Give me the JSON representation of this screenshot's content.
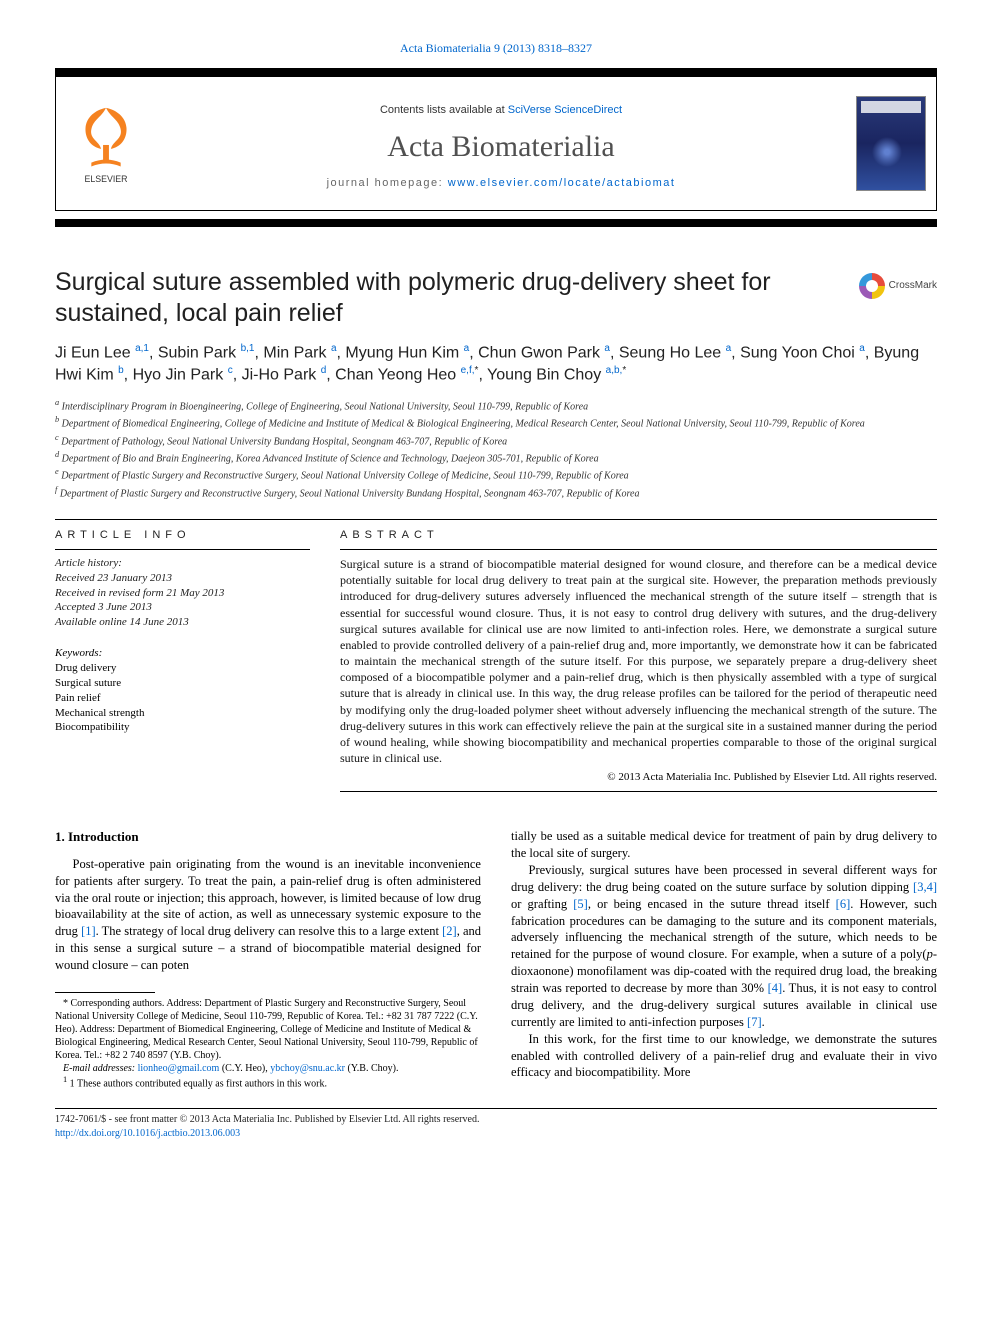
{
  "biblio": {
    "text": "Acta Biomaterialia 9 (2013) 8318–8327",
    "journal_link": "Acta Biomaterialia"
  },
  "header": {
    "publisher": "ELSEVIER",
    "contents_prefix": "Contents lists available at ",
    "contents_link": "SciVerse ScienceDirect",
    "journal_name": "Acta Biomaterialia",
    "homepage_prefix": "journal homepage: ",
    "homepage_link": "www.elsevier.com/locate/actabiomat",
    "crossmark_label": "CrossMark"
  },
  "article": {
    "title": "Surgical suture assembled with polymeric drug-delivery sheet for sustained, local pain relief",
    "authors_html": "Ji Eun Lee <sup>a,1</sup>, Subin Park <sup>b,1</sup>, Min Park <sup>a</sup>, Myung Hun Kim <sup>a</sup>, Chun Gwon Park <sup>a</sup>, Seung Ho Lee <sup>a</sup>, Sung Yoon Choi <sup>a</sup>, Byung Hwi Kim <sup>b</sup>, Hyo Jin Park <sup>c</sup>, Ji-Ho Park <sup>d</sup>, Chan Yeong Heo <sup>e,f,</sup><sup class='sup-black'>*</sup>, Young Bin Choy <sup>a,b,</sup><sup class='sup-black'>*</sup>",
    "affiliations": [
      "a Interdisciplinary Program in Bioengineering, College of Engineering, Seoul National University, Seoul 110-799, Republic of Korea",
      "b Department of Biomedical Engineering, College of Medicine and Institute of Medical & Biological Engineering, Medical Research Center, Seoul National University, Seoul 110-799, Republic of Korea",
      "c Department of Pathology, Seoul National University Bundang Hospital, Seongnam 463-707, Republic of Korea",
      "d Department of Bio and Brain Engineering, Korea Advanced Institute of Science and Technology, Daejeon 305-701, Republic of Korea",
      "e Department of Plastic Surgery and Reconstructive Surgery, Seoul National University College of Medicine, Seoul 110-799, Republic of Korea",
      "f Department of Plastic Surgery and Reconstructive Surgery, Seoul National University Bundang Hospital, Seongnam 463-707, Republic of Korea"
    ]
  },
  "info": {
    "section_label": "ARTICLE INFO",
    "history_label": "Article history:",
    "history": [
      "Received 23 January 2013",
      "Received in revised form 21 May 2013",
      "Accepted 3 June 2013",
      "Available online 14 June 2013"
    ],
    "keywords_label": "Keywords:",
    "keywords": [
      "Drug delivery",
      "Surgical suture",
      "Pain relief",
      "Mechanical strength",
      "Biocompatibility"
    ]
  },
  "abstract": {
    "label": "ABSTRACT",
    "text": "Surgical suture is a strand of biocompatible material designed for wound closure, and therefore can be a medical device potentially suitable for local drug delivery to treat pain at the surgical site. However, the preparation methods previously introduced for drug-delivery sutures adversely influenced the mechanical strength of the suture itself – strength that is essential for successful wound closure. Thus, it is not easy to control drug delivery with sutures, and the drug-delivery surgical sutures available for clinical use are now limited to anti-infection roles. Here, we demonstrate a surgical suture enabled to provide controlled delivery of a pain-relief drug and, more importantly, we demonstrate how it can be fabricated to maintain the mechanical strength of the suture itself. For this purpose, we separately prepare a drug-delivery sheet composed of a biocompatible polymer and a pain-relief drug, which is then physically assembled with a type of surgical suture that is already in clinical use. In this way, the drug release profiles can be tailored for the period of therapeutic need by modifying only the drug-loaded polymer sheet without adversely influencing the mechanical strength of the suture. The drug-delivery sutures in this work can effectively relieve the pain at the surgical site in a sustained manner during the period of wound healing, while showing biocompatibility and mechanical properties comparable to those of the original surgical suture in clinical use.",
    "copyright": "© 2013 Acta Materialia Inc. Published by Elsevier Ltd. All rights reserved."
  },
  "body": {
    "section1_heading": "1. Introduction",
    "col1_p1": "Post-operative pain originating from the wound is an inevitable inconvenience for patients after surgery. To treat the pain, a pain-relief drug is often administered via the oral route or injection; this approach, however, is limited because of low drug bioavailability at the site of action, as well as unnecessary systemic exposure to the drug [1]. The strategy of local drug delivery can resolve this to a large extent [2], and in this sense a surgical suture – a strand of biocompatible material designed for wound closure – can poten",
    "col2_p0_cont": "tially be used as a suitable medical device for treatment of pain by drug delivery to the local site of surgery.",
    "col2_p1": "Previously, surgical sutures have been processed in several different ways for drug delivery: the drug being coated on the suture surface by solution dipping [3,4] or grafting [5], or being encased in the suture thread itself [6]. However, such fabrication procedures can be damaging to the suture and its component materials, adversely influencing the mechanical strength of the suture, which needs to be retained for the purpose of wound closure. For example, when a suture of a poly(p-dioxaonone) monofilament was dip-coated with the required drug load, the breaking strain was reported to decrease by more than 30% [4]. Thus, it is not easy to control drug delivery, and the drug-delivery surgical sutures available in clinical use currently are limited to anti-infection purposes [7].",
    "col2_p2": "In this work, for the first time to our knowledge, we demonstrate the sutures enabled with controlled delivery of a pain-relief drug and evaluate their in vivo efficacy and biocompatibility. More"
  },
  "footnotes": {
    "corr": "* Corresponding authors. Address: Department of Plastic Surgery and Reconstructive Surgery, Seoul National University College of Medicine, Seoul 110-799, Republic of Korea. Tel.: +82 31 787 7222 (C.Y. Heo). Address: Department of Biomedical Engineering, College of Medicine and Institute of Medical & Biological Engineering, Medical Research Center, Seoul National University, Seoul 110-799, Republic of Korea. Tel.: +82 2 740 8597 (Y.B. Choy).",
    "email_label": "E-mail addresses: ",
    "email1": "lionheo@gmail.com",
    "email1_who": " (C.Y. Heo), ",
    "email2": "ybchoy@snu.ac.kr",
    "email2_who": " (Y.B. Choy).",
    "contrib": "1 These authors contributed equally as first authors in this work."
  },
  "footer": {
    "line1": "1742-7061/$ - see front matter © 2013 Acta Materialia Inc. Published by Elsevier Ltd. All rights reserved.",
    "doi": "http://dx.doi.org/10.1016/j.actbio.2013.06.003"
  },
  "style": {
    "link_color": "#0066cc",
    "text_color": "#000000",
    "accent_orange": "#f58220"
  }
}
